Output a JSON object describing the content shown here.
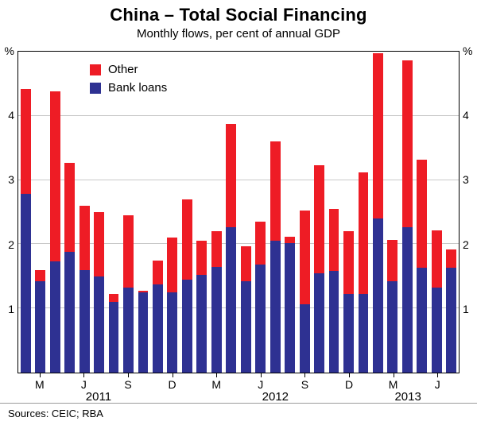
{
  "header": {
    "title": "China – Total Social Financing",
    "subtitle": "Monthly flows, per cent of annual GDP"
  },
  "footer": {
    "source": "Sources: CEIC; RBA"
  },
  "colors": {
    "other": "#ee1c25",
    "bank_loans": "#2e3192",
    "grid": "#c9c9c9",
    "axis": "#000000"
  },
  "axis": {
    "unit_left": "%",
    "unit_right": "%",
    "ymin": 0,
    "ymax": 5,
    "yticks": [
      1,
      2,
      3,
      4
    ]
  },
  "legend": [
    {
      "label": "Other",
      "color_key": "other"
    },
    {
      "label": "Bank loans",
      "color_key": "bank_loans"
    }
  ],
  "chart_data": {
    "type": "bar",
    "stacked": true,
    "title": "China – Total Social Financing",
    "subtitle": "Monthly flows, per cent of annual GDP",
    "ylabel": "%",
    "ylim": [
      0,
      5
    ],
    "grid": true,
    "legend_position": "upper-left-inside",
    "x": [
      "Feb 2011",
      "Mar 2011",
      "Apr 2011",
      "May 2011",
      "Jun 2011",
      "Jul 2011",
      "Aug 2011",
      "Sep 2011",
      "Oct 2011",
      "Nov 2011",
      "Dec 2011",
      "Jan 2012",
      "Feb 2012",
      "Mar 2012",
      "Apr 2012",
      "May 2012",
      "Jun 2012",
      "Jul 2012",
      "Aug 2012",
      "Sep 2012",
      "Oct 2012",
      "Nov 2012",
      "Dec 2012",
      "Jan 2013",
      "Feb 2013",
      "Mar 2013",
      "Apr 2013",
      "May 2013",
      "Jun 2013",
      "Jul 2013"
    ],
    "series": [
      {
        "name": "Bank loans",
        "color_key": "bank_loans",
        "values": [
          2.78,
          1.42,
          1.73,
          1.88,
          1.6,
          1.5,
          1.1,
          1.33,
          1.25,
          1.38,
          1.25,
          1.45,
          1.52,
          1.65,
          2.27,
          1.42,
          1.68,
          2.05,
          2.02,
          1.07,
          1.55,
          1.58,
          1.22,
          1.22,
          2.4,
          1.42,
          2.27,
          1.63,
          1.32,
          1.63
        ]
      },
      {
        "name": "Other",
        "color_key": "other",
        "values": [
          1.64,
          0.18,
          2.65,
          1.39,
          1.0,
          1.0,
          0.12,
          1.12,
          0.02,
          0.37,
          0.85,
          1.25,
          0.53,
          0.55,
          1.6,
          0.55,
          0.67,
          1.55,
          0.1,
          1.45,
          1.68,
          0.97,
          0.98,
          1.9,
          2.58,
          0.65,
          2.6,
          1.69,
          0.9,
          0.29
        ]
      }
    ],
    "xticks": [
      {
        "index": 2,
        "label": "M"
      },
      {
        "index": 5,
        "label": "J"
      },
      {
        "index": 8,
        "label": "S"
      },
      {
        "index": 11,
        "label": "D"
      },
      {
        "index": 14,
        "label": "M"
      },
      {
        "index": 17,
        "label": "J"
      },
      {
        "index": 20,
        "label": "S"
      },
      {
        "index": 23,
        "label": "D"
      },
      {
        "index": 26,
        "label": "M"
      },
      {
        "index": 29,
        "label": "J"
      }
    ],
    "year_labels": [
      {
        "pos": 6.0,
        "label": "2011"
      },
      {
        "pos": 18.0,
        "label": "2012"
      },
      {
        "pos": 27.0,
        "label": "2013"
      }
    ]
  }
}
